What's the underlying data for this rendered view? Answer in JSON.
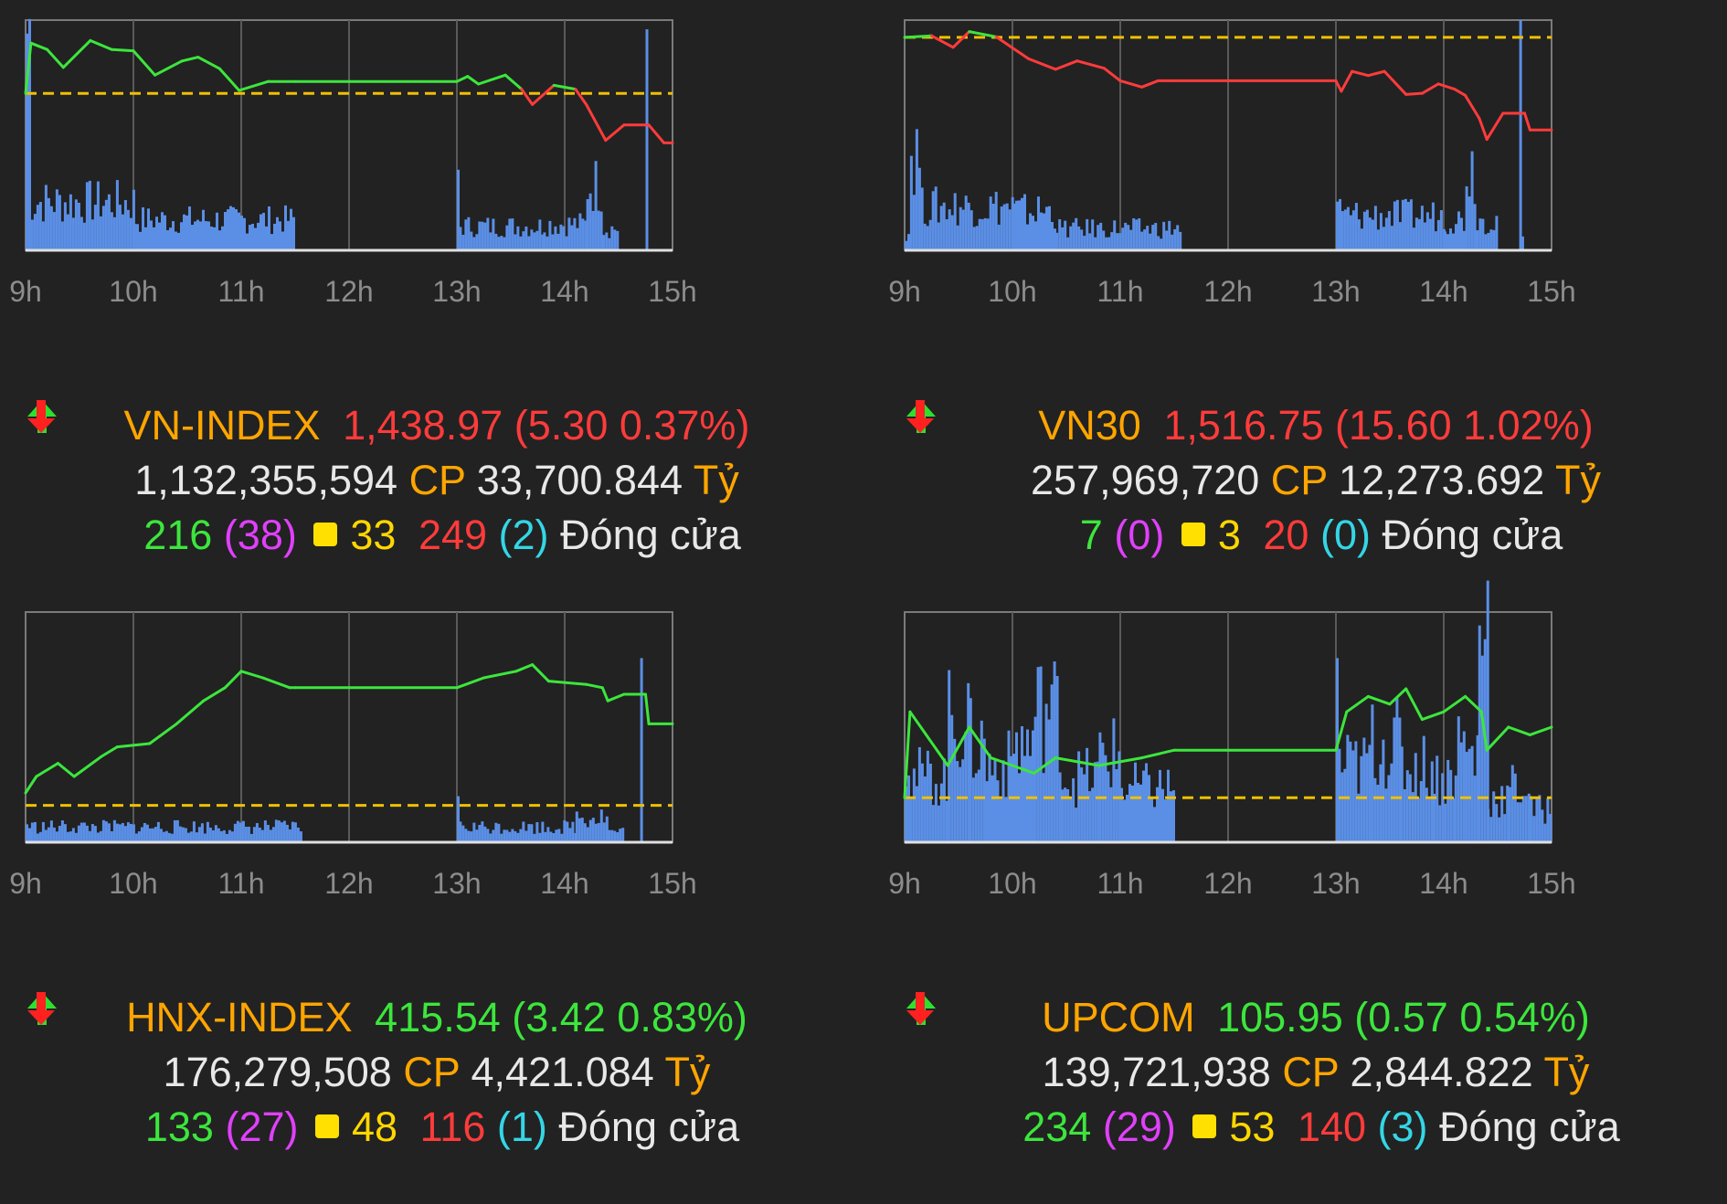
{
  "panels": [
    {
      "index_name": "VN-INDEX",
      "direction": "down",
      "value": "1,438.97",
      "change": "(5.30 0.37%)",
      "volume": "1,132,355,594",
      "volume_unit": "CP",
      "turnover": "33,700.844",
      "turnover_unit": "Tỷ",
      "advances": "216",
      "ceiling": "(38)",
      "unchanged": "33",
      "declines": "249",
      "floor": "(2)",
      "status": "Đóng cửa"
    },
    {
      "index_name": "VN30",
      "direction": "down",
      "value": "1,516.75",
      "change": "(15.60 1.02%)",
      "volume": "257,969,720",
      "volume_unit": "CP",
      "turnover": "12,273.692",
      "turnover_unit": "Tỷ",
      "advances": "7",
      "ceiling": "(0)",
      "unchanged": "3",
      "declines": "20",
      "floor": "(0)",
      "status": "Đóng cửa"
    },
    {
      "index_name": "HNX-INDEX",
      "direction": "up",
      "value": "415.54",
      "change": "(3.42 0.83%)",
      "volume": "176,279,508",
      "volume_unit": "CP",
      "turnover": "4,421.084",
      "turnover_unit": "Tỷ",
      "advances": "133",
      "ceiling": "(27)",
      "unchanged": "48",
      "declines": "116",
      "floor": "(1)",
      "status": "Đóng cửa"
    },
    {
      "index_name": "UPCOM",
      "direction": "up",
      "value": "105.95",
      "change": "(0.57 0.54%)",
      "volume": "139,721,938",
      "volume_unit": "CP",
      "turnover": "2,844.822",
      "turnover_unit": "Tỷ",
      "advances": "234",
      "ceiling": "(29)",
      "unchanged": "53",
      "declines": "140",
      "floor": "(3)",
      "status": "Đóng cửa"
    }
  ],
  "chart_data": [
    {
      "type": "line",
      "x_ticks": [
        "9h",
        "10h",
        "11h",
        "12h",
        "13h",
        "14h",
        "15h"
      ],
      "reference": 1444.27,
      "price_ylim": [
        1432,
        1450
      ],
      "price": [
        [
          9.0,
          1444.27
        ],
        [
          9.05,
          1448.2
        ],
        [
          9.2,
          1447.7
        ],
        [
          9.35,
          1446.3
        ],
        [
          9.6,
          1448.4
        ],
        [
          9.8,
          1447.7
        ],
        [
          10.0,
          1447.6
        ],
        [
          10.2,
          1445.7
        ],
        [
          10.45,
          1446.8
        ],
        [
          10.6,
          1447.1
        ],
        [
          10.8,
          1446.2
        ],
        [
          10.98,
          1444.5
        ],
        [
          11.25,
          1445.2
        ],
        [
          11.5,
          1445.2
        ],
        [
          12.0,
          1445.2
        ],
        [
          13.0,
          1445.2
        ],
        [
          13.1,
          1445.6
        ],
        [
          13.2,
          1445.0
        ],
        [
          13.45,
          1445.7
        ],
        [
          13.6,
          1444.6
        ],
        [
          13.7,
          1443.4
        ],
        [
          13.9,
          1444.9
        ],
        [
          14.1,
          1444.6
        ],
        [
          14.2,
          1443.4
        ],
        [
          14.38,
          1440.6
        ],
        [
          14.55,
          1441.8
        ],
        [
          14.78,
          1441.8
        ],
        [
          14.92,
          1440.4
        ],
        [
          15.0,
          1440.4
        ]
      ],
      "volume_ylim": [
        0,
        100
      ],
      "volume_segments": [
        [
          9.0,
          9.05,
          100
        ],
        [
          9.05,
          10.0,
          22
        ],
        [
          10.0,
          11.5,
          14
        ],
        [
          13.0,
          13.02,
          35
        ],
        [
          13.02,
          13.8,
          11
        ],
        [
          13.8,
          14.2,
          12
        ],
        [
          14.2,
          14.35,
          30
        ],
        [
          14.35,
          14.5,
          10
        ],
        [
          14.75,
          14.77,
          96
        ]
      ]
    },
    {
      "type": "line",
      "x_ticks": [
        "9h",
        "10h",
        "11h",
        "12h",
        "13h",
        "14h",
        "15h"
      ],
      "reference": 1532.35,
      "price_ylim": [
        1512,
        1534
      ],
      "price": [
        [
          9.0,
          1532.35
        ],
        [
          9.25,
          1532.5
        ],
        [
          9.45,
          1531.4
        ],
        [
          9.6,
          1532.9
        ],
        [
          9.85,
          1532.4
        ],
        [
          10.15,
          1530.3
        ],
        [
          10.4,
          1529.3
        ],
        [
          10.6,
          1530.1
        ],
        [
          10.85,
          1529.4
        ],
        [
          11.0,
          1528.2
        ],
        [
          11.2,
          1527.6
        ],
        [
          11.35,
          1528.2
        ],
        [
          11.5,
          1528.2
        ],
        [
          12.0,
          1528.2
        ],
        [
          13.0,
          1528.2
        ],
        [
          13.05,
          1527.2
        ],
        [
          13.15,
          1529.1
        ],
        [
          13.3,
          1528.7
        ],
        [
          13.45,
          1529.1
        ],
        [
          13.65,
          1526.9
        ],
        [
          13.8,
          1527.0
        ],
        [
          13.95,
          1527.9
        ],
        [
          14.1,
          1527.4
        ],
        [
          14.2,
          1526.8
        ],
        [
          14.33,
          1524.6
        ],
        [
          14.4,
          1522.6
        ],
        [
          14.55,
          1525.1
        ],
        [
          14.75,
          1525.1
        ],
        [
          14.8,
          1523.5
        ],
        [
          15.0,
          1523.5
        ]
      ],
      "volume_ylim": [
        0,
        100
      ],
      "volume_segments": [
        [
          9.0,
          9.05,
          8
        ],
        [
          9.05,
          9.15,
          45
        ],
        [
          9.15,
          10.0,
          20
        ],
        [
          10.0,
          10.4,
          18
        ],
        [
          10.4,
          11.55,
          10
        ],
        [
          13.0,
          13.05,
          18
        ],
        [
          13.05,
          14.0,
          16
        ],
        [
          14.0,
          14.2,
          14
        ],
        [
          14.2,
          14.3,
          38
        ],
        [
          14.3,
          14.5,
          14
        ],
        [
          14.7,
          14.72,
          100
        ],
        [
          14.72,
          14.75,
          6
        ]
      ]
    },
    {
      "type": "line",
      "x_ticks": [
        "9h",
        "10h",
        "11h",
        "12h",
        "13h",
        "14h",
        "15h"
      ],
      "reference": 412.12,
      "price_ylim": [
        411,
        418
      ],
      "price": [
        [
          9.0,
          412.5
        ],
        [
          9.1,
          413.0
        ],
        [
          9.3,
          413.4
        ],
        [
          9.45,
          413.0
        ],
        [
          9.7,
          413.6
        ],
        [
          9.85,
          413.9
        ],
        [
          10.15,
          414.0
        ],
        [
          10.4,
          414.6
        ],
        [
          10.65,
          415.3
        ],
        [
          10.85,
          415.7
        ],
        [
          11.0,
          416.2
        ],
        [
          11.2,
          416.0
        ],
        [
          11.45,
          415.7
        ],
        [
          11.5,
          415.7
        ],
        [
          12.0,
          415.7
        ],
        [
          13.0,
          415.7
        ],
        [
          13.25,
          416.0
        ],
        [
          13.55,
          416.2
        ],
        [
          13.7,
          416.4
        ],
        [
          13.85,
          415.9
        ],
        [
          14.2,
          415.8
        ],
        [
          14.35,
          415.7
        ],
        [
          14.4,
          415.3
        ],
        [
          14.55,
          415.5
        ],
        [
          14.75,
          415.5
        ],
        [
          14.78,
          414.6
        ],
        [
          15.0,
          414.6
        ]
      ],
      "volume_ylim": [
        0,
        100
      ],
      "volume_segments": [
        [
          9.0,
          9.05,
          8
        ],
        [
          9.05,
          11.55,
          7
        ],
        [
          13.0,
          13.02,
          20
        ],
        [
          13.02,
          14.1,
          7
        ],
        [
          14.1,
          14.4,
          12
        ],
        [
          14.4,
          14.55,
          5
        ],
        [
          14.7,
          14.72,
          80
        ]
      ]
    },
    {
      "type": "line",
      "x_ticks": [
        "9h",
        "10h",
        "11h",
        "12h",
        "13h",
        "14h",
        "15h"
      ],
      "reference": 105.38,
      "price_ylim": [
        104.8,
        107.8
      ],
      "price": [
        [
          9.0,
          105.38
        ],
        [
          9.05,
          106.5
        ],
        [
          9.2,
          106.2
        ],
        [
          9.4,
          105.8
        ],
        [
          9.6,
          106.3
        ],
        [
          9.8,
          105.9
        ],
        [
          10.0,
          105.8
        ],
        [
          10.2,
          105.7
        ],
        [
          10.4,
          105.9
        ],
        [
          10.8,
          105.8
        ],
        [
          11.2,
          105.9
        ],
        [
          11.5,
          106.0
        ],
        [
          12.0,
          106.0
        ],
        [
          13.0,
          106.0
        ],
        [
          13.1,
          106.5
        ],
        [
          13.3,
          106.7
        ],
        [
          13.5,
          106.6
        ],
        [
          13.65,
          106.8
        ],
        [
          13.8,
          106.4
        ],
        [
          14.0,
          106.5
        ],
        [
          14.2,
          106.7
        ],
        [
          14.35,
          106.5
        ],
        [
          14.4,
          106.0
        ],
        [
          14.6,
          106.3
        ],
        [
          14.8,
          106.2
        ],
        [
          15.0,
          106.3
        ]
      ],
      "volume_ylim": [
        0,
        100
      ],
      "volume_segments": [
        [
          9.0,
          9.05,
          45
        ],
        [
          9.05,
          9.4,
          30
        ],
        [
          9.4,
          9.6,
          55
        ],
        [
          9.6,
          9.75,
          45
        ],
        [
          9.75,
          10.0,
          35
        ],
        [
          10.0,
          10.2,
          45
        ],
        [
          10.2,
          10.45,
          60
        ],
        [
          10.45,
          10.8,
          30
        ],
        [
          10.8,
          11.0,
          40
        ],
        [
          11.0,
          11.5,
          25
        ],
        [
          13.0,
          13.02,
          80
        ],
        [
          13.02,
          13.3,
          35
        ],
        [
          13.3,
          13.6,
          45
        ],
        [
          13.6,
          13.9,
          35
        ],
        [
          13.9,
          14.1,
          30
        ],
        [
          14.1,
          14.2,
          45
        ],
        [
          14.2,
          14.32,
          40
        ],
        [
          14.32,
          14.4,
          100
        ],
        [
          14.4,
          14.6,
          20
        ],
        [
          14.6,
          14.8,
          25
        ],
        [
          14.8,
          15.0,
          15
        ]
      ]
    }
  ],
  "colors": {
    "up": "#3ce63c",
    "down": "#ff3b3b",
    "reference": "#f0c000",
    "volume": "#5b8fe6",
    "grid": "#5a5a5a",
    "frame": "#7a7a7a",
    "axis": "#e0e0e0",
    "title": "#ffa500",
    "ceiling": "#e040fb",
    "unchanged": "#ffd700",
    "floor": "#34d6e6"
  }
}
